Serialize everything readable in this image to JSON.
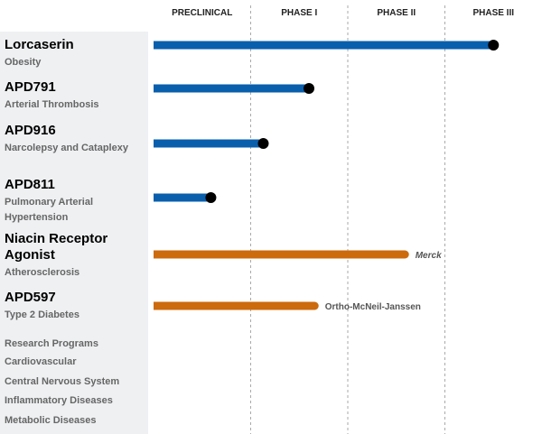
{
  "chart_data": {
    "type": "bar",
    "orientation": "horizontal",
    "categories": [
      "Lorcaserin",
      "APD791",
      "APD916",
      "APD811",
      "Niacin Receptor Agonist",
      "APD597"
    ],
    "subtitles": [
      "Obesity",
      "Arterial Thrombosis",
      "Narcolepsy and Cataplexy",
      "Pulmonary Arterial Hypertension",
      "Atherosclerosis",
      "Type 2 Diabetes"
    ],
    "values": [
      3.5,
      1.6,
      1.13,
      0.59,
      2.63,
      1.7
    ],
    "colors": [
      "#0a5fad",
      "#0a5fad",
      "#0a5fad",
      "#0a5fad",
      "#cc6a0e",
      "#cc6a0e"
    ],
    "endpoint_markers": [
      true,
      true,
      true,
      true,
      false,
      false
    ],
    "partners": [
      null,
      null,
      null,
      null,
      "Merck",
      "Ortho-McNeil-Janssen"
    ],
    "xlim": [
      0,
      4
    ],
    "xticks": [
      {
        "value": 0.5,
        "label": "PRECLINICAL"
      },
      {
        "value": 1.5,
        "label": "PHASE I"
      },
      {
        "value": 2.5,
        "label": "PHASE II"
      },
      {
        "value": 3.5,
        "label": "PHASE III"
      }
    ],
    "research_programs": {
      "title": "Research Programs",
      "items": [
        "Cardiovascular",
        "Central Nervous System",
        "Inflammatory Diseases",
        "Metabolic Diseases"
      ]
    }
  }
}
